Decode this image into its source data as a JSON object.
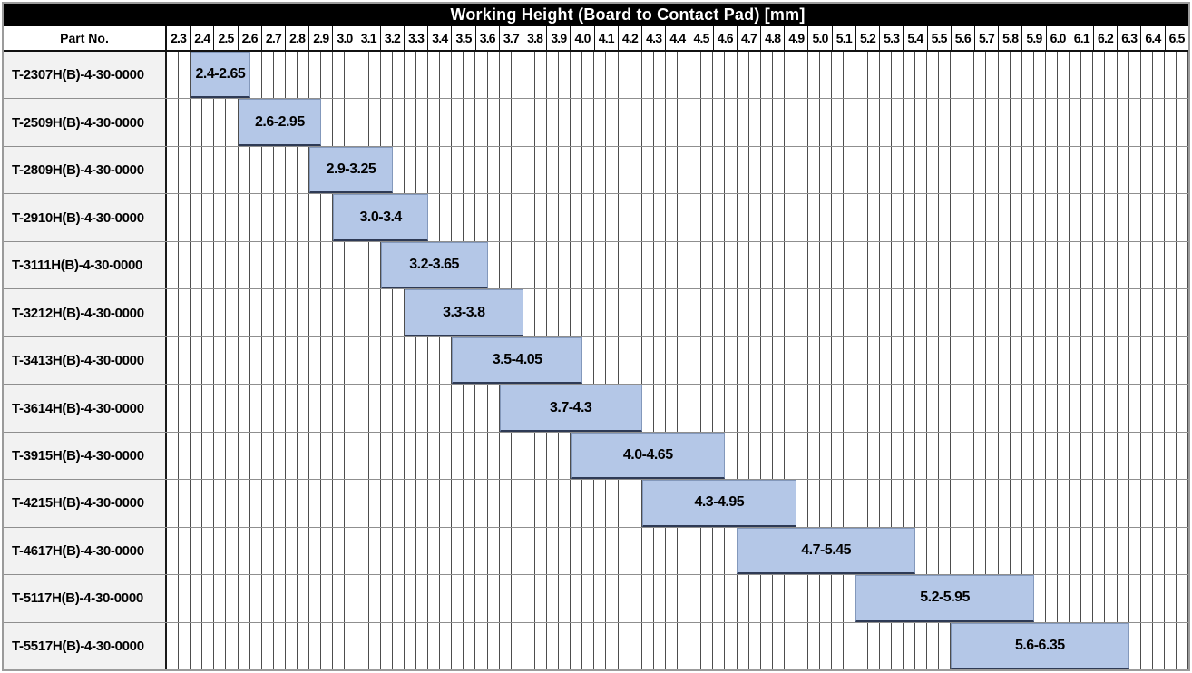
{
  "header": {
    "part_no": "Part No."
  },
  "colors": {
    "title_bg": "#000000",
    "title_text": "#ffffff",
    "bar_fill": "#b4c7e7",
    "bar_border": "#8398bb",
    "bar_border_bottom": "#2e3a55",
    "row_label_bg": "#f2f2f2",
    "minor_grid_line": "#4d4d4d",
    "row_line": "#8f8f8f",
    "header_border": "#111111",
    "outer_border": "#9b9b9b"
  },
  "chart_data": {
    "type": "bar",
    "subtype": "horizontal-range",
    "title": "Working Height (Board to Contact Pad) [mm]",
    "x_axis": {
      "min": 2.3,
      "max": 6.6,
      "major_step": 0.1,
      "minor_step": 0.05,
      "tick_labels": [
        "2.3",
        "2.4",
        "2.5",
        "2.6",
        "2.7",
        "2.8",
        "2.9",
        "3.0",
        "3.1",
        "3.2",
        "3.3",
        "3.4",
        "3.5",
        "3.6",
        "3.7",
        "3.8",
        "3.9",
        "4.0",
        "4.1",
        "4.2",
        "4.3",
        "4.4",
        "4.5",
        "4.6",
        "4.7",
        "4.8",
        "4.9",
        "5.0",
        "5.1",
        "5.2",
        "5.3",
        "5.4",
        "5.5",
        "5.6",
        "5.7",
        "5.8",
        "5.9",
        "6.0",
        "6.1",
        "6.2",
        "6.3",
        "6.4",
        "6.5"
      ]
    },
    "categories": [
      "T-2307H(B)-4-30-0000",
      "T-2509H(B)-4-30-0000",
      "T-2809H(B)-4-30-0000",
      "T-2910H(B)-4-30-0000",
      "T-3111H(B)-4-30-0000",
      "T-3212H(B)-4-30-0000",
      "T-3413H(B)-4-30-0000",
      "T-3614H(B)-4-30-0000",
      "T-3915H(B)-4-30-0000",
      "T-4215H(B)-4-30-0000",
      "T-4617H(B)-4-30-0000",
      "T-5117H(B)-4-30-0000",
      "T-5517H(B)-4-30-0000"
    ],
    "series": [
      {
        "name": "Working Height (Board to Contact Pad) [mm]",
        "ranges": [
          [
            2.4,
            2.65
          ],
          [
            2.6,
            2.95
          ],
          [
            2.9,
            3.25
          ],
          [
            3.0,
            3.4
          ],
          [
            3.2,
            3.65
          ],
          [
            3.3,
            3.8
          ],
          [
            3.5,
            4.05
          ],
          [
            3.7,
            4.3
          ],
          [
            4.0,
            4.65
          ],
          [
            4.3,
            4.95
          ],
          [
            4.7,
            5.45
          ],
          [
            5.2,
            5.95
          ],
          [
            5.6,
            6.35
          ]
        ],
        "labels": [
          "2.4-2.65",
          "2.6-2.95",
          "2.9-3.25",
          "3.0-3.4",
          "3.2-3.65",
          "3.3-3.8",
          "3.5-4.05",
          "3.7-4.3",
          "4.0-4.65",
          "4.3-4.95",
          "4.7-5.45",
          "5.2-5.95",
          "5.6-6.35"
        ]
      }
    ],
    "grid": true,
    "legend": false
  }
}
